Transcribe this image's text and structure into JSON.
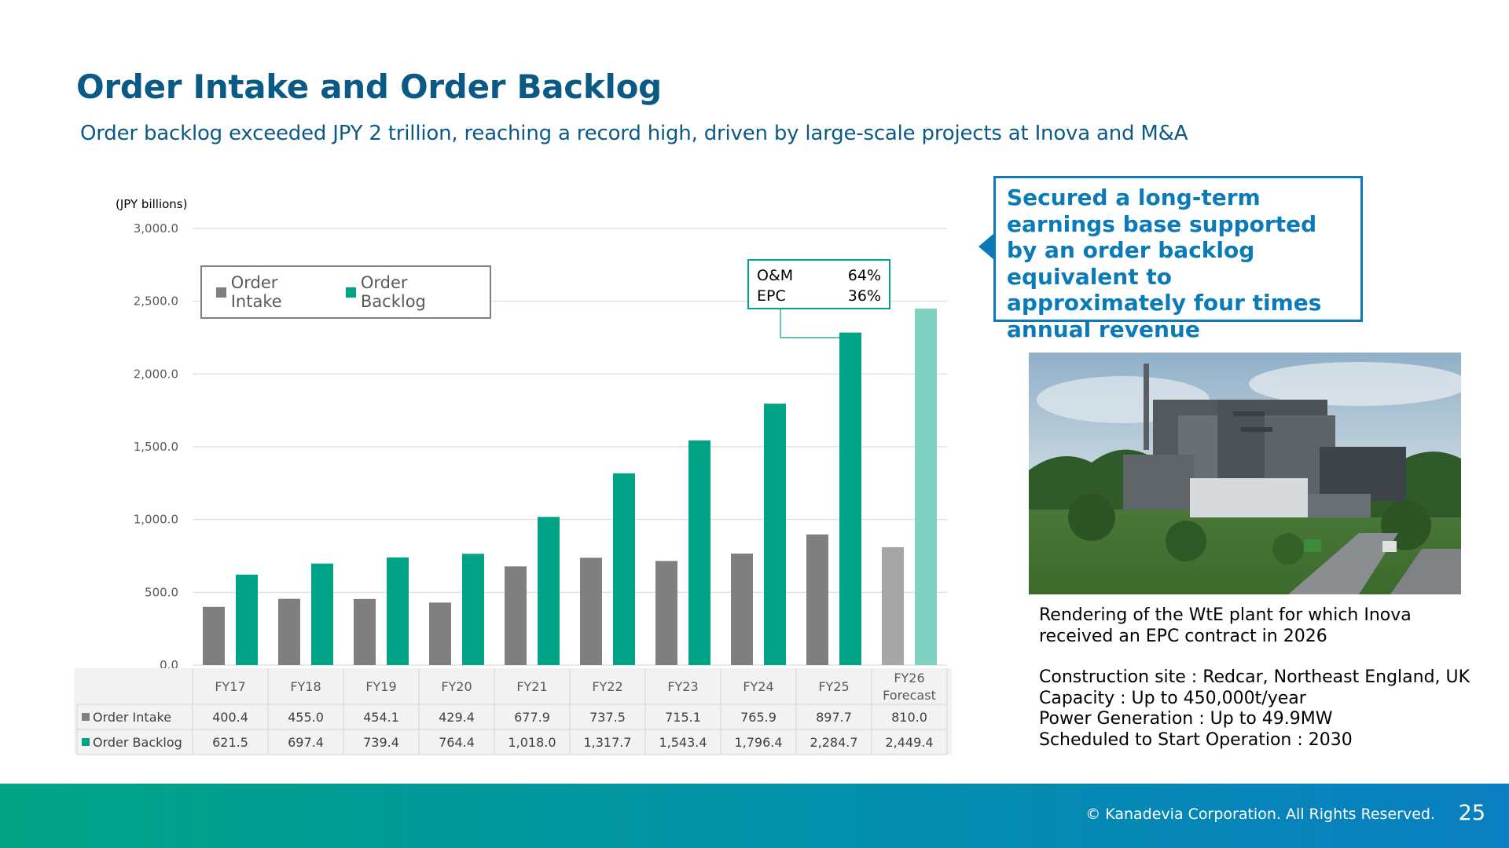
{
  "page": {
    "title": "Order Intake and Order Backlog",
    "subtitle": "Order backlog exceeded JPY 2 trillion, reaching a record high, driven by large-scale projects at Inova and M&A"
  },
  "chart_data": {
    "type": "bar",
    "unit_label": "(JPY billions)",
    "categories": [
      "FY17",
      "FY18",
      "FY19",
      "FY20",
      "FY21",
      "FY22",
      "FY23",
      "FY24",
      "FY25",
      "FY26 Forecast"
    ],
    "series": [
      {
        "name": "Order Intake",
        "color": "#7f7f7f",
        "forecast_color": "#a6a6a6",
        "values": [
          400.4,
          455.0,
          454.1,
          429.4,
          677.9,
          737.5,
          715.1,
          765.9,
          897.7,
          810.0
        ],
        "labels": [
          "400.4",
          "455.0",
          "454.1",
          "429.4",
          "677.9",
          "737.5",
          "715.1",
          "765.9",
          "897.7",
          "810.0"
        ]
      },
      {
        "name": "Order Backlog",
        "color": "#00a385",
        "forecast_color": "#7fd1c2",
        "values": [
          621.5,
          697.4,
          739.4,
          764.4,
          1018.0,
          1317.7,
          1543.4,
          1796.4,
          2284.7,
          2449.4
        ],
        "labels": [
          "621.5",
          "697.4",
          "739.4",
          "764.4",
          "1,018.0",
          "1,317.7",
          "1,543.4",
          "1,796.4",
          "2,284.7",
          "2,449.4"
        ]
      }
    ],
    "ylim": [
      0,
      3000
    ],
    "yticks": [
      "0.0",
      "500.0",
      "1,000.0",
      "1,500.0",
      "2,000.0",
      "2,500.0",
      "3,000.0"
    ],
    "ytick_values": [
      0,
      500,
      1000,
      1500,
      2000,
      2500,
      3000
    ],
    "grid": true,
    "legend_placement": "top-left",
    "data_table": true
  },
  "breakdown_box": {
    "rows": [
      {
        "label": "O&M",
        "value": "64%"
      },
      {
        "label": "EPC",
        "value": "36%"
      }
    ]
  },
  "callout": {
    "text": "Secured a long-term earnings base supported by an order backlog equivalent to approximately four times annual revenue"
  },
  "caption": {
    "line1": "Rendering of the WtE plant for which Inova received an EPC contract in 2026",
    "site": "Construction site : Redcar, Northeast England, UK",
    "capacity": "Capacity : Up to 450,000t/year",
    "power": "Power Generation : Up to 49.9MW",
    "schedule": "Scheduled to Start Operation : 2030"
  },
  "footer": {
    "copyright": "© Kanadevia Corporation. All Rights Reserved.",
    "page_number": "25"
  }
}
